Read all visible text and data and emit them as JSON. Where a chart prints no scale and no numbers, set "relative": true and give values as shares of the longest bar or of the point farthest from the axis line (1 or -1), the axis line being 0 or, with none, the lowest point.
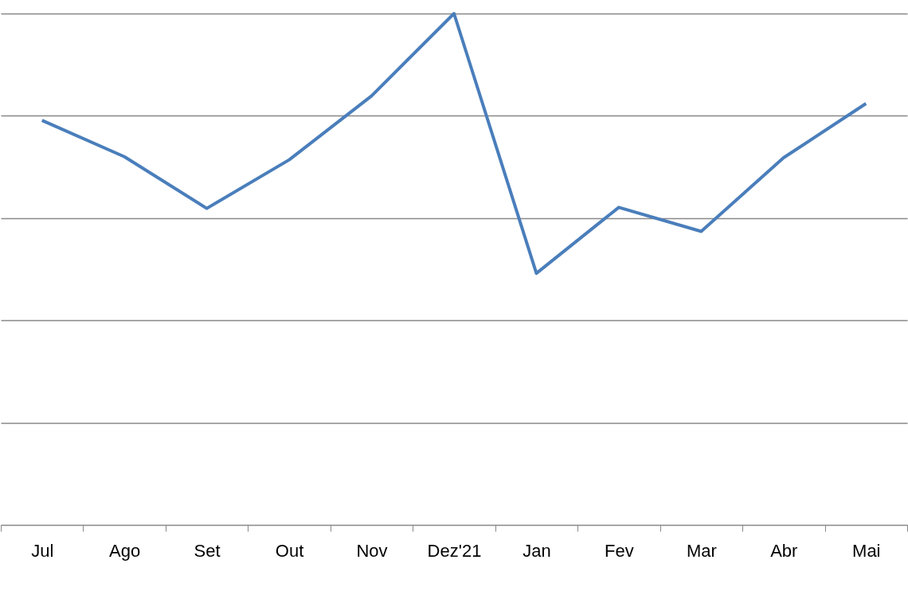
{
  "chart_data": {
    "type": "line",
    "relative": true,
    "categories": [
      "Jul",
      "Ago",
      "Set",
      "Out",
      "Nov",
      "Dez'21",
      "Jan",
      "Fev",
      "Mar",
      "Abr",
      "Mai"
    ],
    "series": [
      {
        "color": "#4a7ebb",
        "values": [
          0.791,
          0.72,
          0.619,
          0.714,
          0.839,
          1,
          0.492,
          0.621,
          0.574,
          0.718,
          0.824
        ]
      }
    ],
    "grid": "y",
    "legend": false,
    "marker": "none",
    "line_style": "solid"
  }
}
